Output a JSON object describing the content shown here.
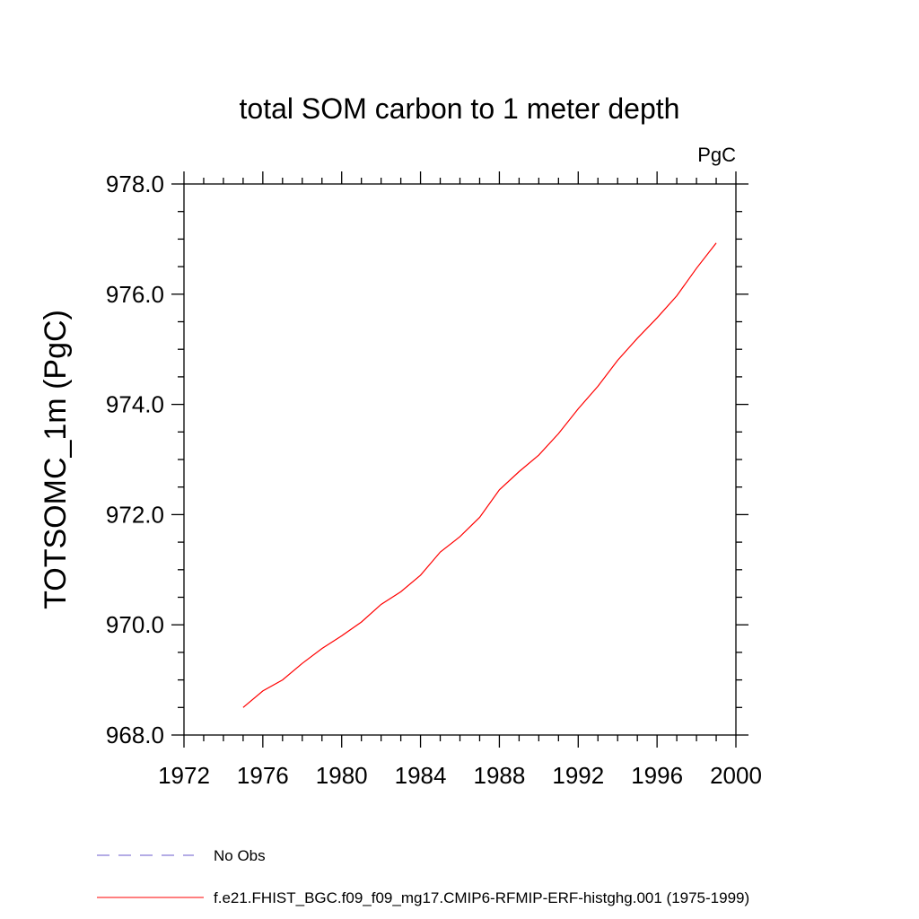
{
  "chart_data": {
    "type": "line",
    "title": "total SOM carbon to 1 meter depth",
    "units_label": "PgC",
    "xlabel": "",
    "ylabel": "TOTSOMC_1m  (PgC)",
    "xlim": [
      1972,
      2000
    ],
    "ylim": [
      968.0,
      978.0
    ],
    "x_ticks": [
      1972,
      1976,
      1980,
      1984,
      1988,
      1992,
      1996,
      2000
    ],
    "x_tick_labels": [
      "1972",
      "1976",
      "1980",
      "1984",
      "1988",
      "1992",
      "1996",
      "2000"
    ],
    "x_minor_step": 1,
    "y_ticks": [
      968.0,
      970.0,
      972.0,
      974.0,
      976.0,
      978.0
    ],
    "y_tick_labels": [
      "968.0",
      "970.0",
      "972.0",
      "974.0",
      "976.0",
      "978.0"
    ],
    "y_minor_step": 0.5,
    "grid": false,
    "legend_position": "bottom-left",
    "series": [
      {
        "name": "f.e21.FHIST_BGC.f09_f09_mg17.CMIP6-RFMIP-ERF-histghg.001 (1975-1999)",
        "color": "#ff0000",
        "style": "solid",
        "x": [
          1975,
          1976,
          1977,
          1978,
          1979,
          1980,
          1981,
          1982,
          1983,
          1984,
          1985,
          1986,
          1987,
          1988,
          1989,
          1990,
          1991,
          1992,
          1993,
          1994,
          1995,
          1996,
          1997,
          1998,
          1999
        ],
        "values": [
          968.5,
          968.8,
          969.0,
          969.3,
          969.57,
          969.8,
          970.05,
          970.37,
          970.6,
          970.9,
          971.32,
          971.6,
          971.95,
          972.45,
          972.78,
          973.08,
          973.47,
          973.92,
          974.33,
          974.8,
          975.2,
          975.57,
          975.97,
          976.47,
          976.93
        ]
      }
    ],
    "legend": [
      {
        "label": "No Obs",
        "color": "#6a5acd",
        "style": "dashed"
      },
      {
        "label": "f.e21.FHIST_BGC.f09_f09_mg17.CMIP6-RFMIP-ERF-histghg.001 (1975-1999)",
        "color": "#ff0000",
        "style": "solid"
      }
    ]
  }
}
